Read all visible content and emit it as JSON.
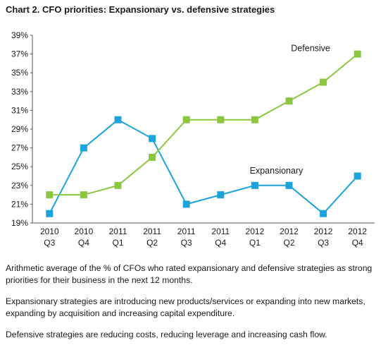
{
  "chart_data": {
    "type": "line",
    "title": "Chart 2. CFO priorities: Expansionary vs. defensive strategies",
    "x": [
      [
        "2010",
        "Q3"
      ],
      [
        "2010",
        "Q4"
      ],
      [
        "2011",
        "Q1"
      ],
      [
        "2011",
        "Q2"
      ],
      [
        "2011",
        "Q3"
      ],
      [
        "2011",
        "Q4"
      ],
      [
        "2012",
        "Q1"
      ],
      [
        "2012",
        "Q2"
      ],
      [
        "2012",
        "Q3"
      ],
      [
        "2012",
        "Q4"
      ]
    ],
    "yticks": [
      "19%",
      "21%",
      "23%",
      "25%",
      "27%",
      "29%",
      "31%",
      "33%",
      "35%",
      "37%",
      "39%"
    ],
    "ylim": [
      19,
      39
    ],
    "grid": false,
    "series": [
      {
        "name": "Expansionary",
        "color": "#1ba3dc",
        "values": [
          20,
          27,
          30,
          28,
          21,
          22,
          23,
          23,
          20,
          24
        ]
      },
      {
        "name": "Defensive",
        "color": "#8cc63f",
        "values": [
          22,
          22,
          23,
          26,
          30,
          30,
          30,
          32,
          34,
          37
        ]
      }
    ]
  },
  "notes": [
    "Arithmetic average of the % of CFOs who rated expansionary and defensive strategies as strong priorities for their business in the next 12 months.",
    "Expansionary strategies are introducing new products/services or expanding into new markets, expanding by acquisition and increasing capital expenditure.",
    "Defensive strategies are reducing costs, reducing leverage and increasing cash flow."
  ]
}
